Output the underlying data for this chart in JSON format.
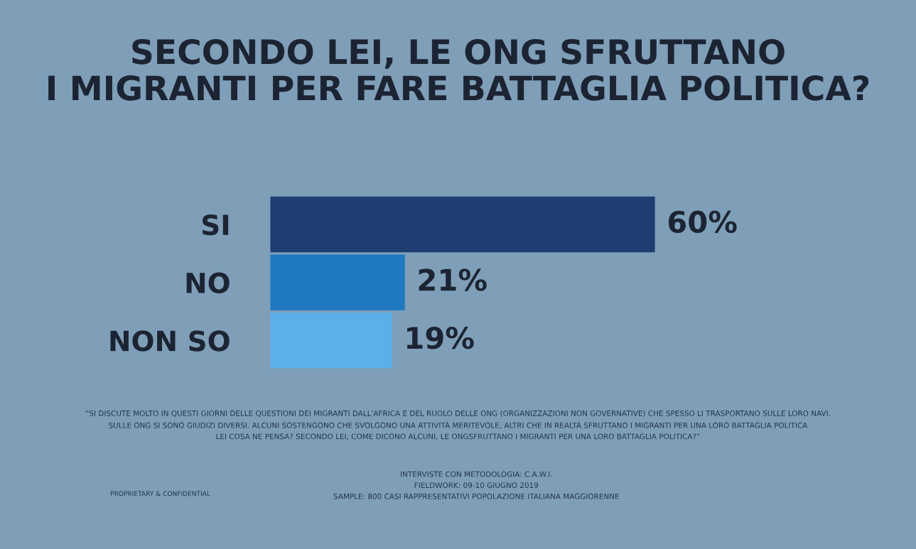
{
  "chart_data": {
    "type": "bar",
    "orientation": "horizontal",
    "title": "SECONDO LEI, LE ONG SFRUTTANO\nI MIGRANTI PER FARE BATTAGLIA POLITICA?",
    "categories": [
      "SI",
      "NO",
      "NON SO"
    ],
    "values": [
      60,
      21,
      19
    ],
    "colors": [
      "#1e3e72",
      "#1f78c1",
      "#5cb0e8"
    ],
    "data_labels": true,
    "value_labels": [
      "60%",
      "21%",
      "19%"
    ],
    "annotations": [
      "“SI DISCUTE MOLTO IN QUESTI GIORNI DELLE QUESTIONI DEI MIGRANTI DALL'AFRICA E DEL RUOLO DELLE ONG (ORGANIZZAZIONI NON GOVERNATIVE) CHE SPESSO LI TRASPORTANO SULLE LORO NAVI.\nSULLE ONG SI SONO GIUDIZI DIVERSI. ALCUNI SOSTENGONO CHE SVOLGONO UNA ATTIVITÀ MERITEVOLE, ALTRI CHE IN REALTÀ SFRUTTANO I MIGRANTI PER UNA LORO BATTAGLIA POLITICA\nLEI COSA NE PENSA? SECONDO LEI, COME DICONO ALCUNI, LE ONGSFRUTTANO I MIGRANTI PER UNA LORO BATTAGLIA POLITICA?”",
      "PROPRIETARY & CONFIDENTIAL",
      "INTERVISTE CON METODOLOGIA: C.A.W.I.\nFIELDWORK: 09-10 GIUGNO 2019\nSAMPLE: 800 CASI RAPPRESENTATIVI POPOLAZIONE ITALIANA MAGGIORENNE"
    ]
  }
}
